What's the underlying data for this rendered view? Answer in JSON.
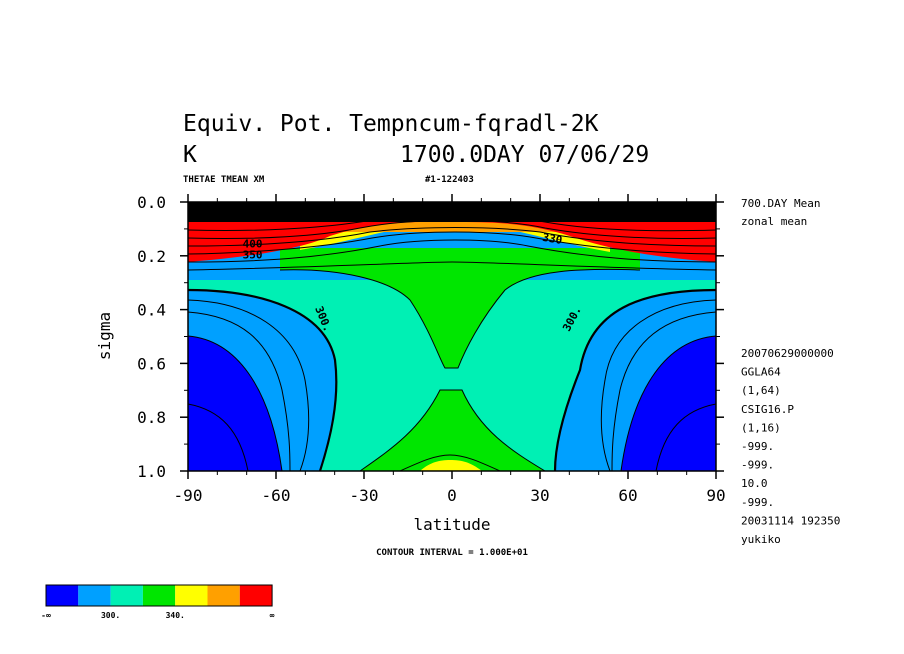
{
  "header": {
    "title_line1": "Equiv. Pot. Tempncum-fqradl-2K",
    "title_line2_left": "K",
    "title_line2_right": "1700.0DAY 07/06/29",
    "var_label": "THETAE TMEAN XM",
    "run_id": "#1-122403"
  },
  "side_info": {
    "top": [
      "700.DAY Mean",
      "zonal mean"
    ],
    "bottom": [
      "20070629000000",
      "GGLA64",
      "(1,64)",
      "CSIG16.P",
      "(1,16)",
      "-999.",
      "-999.",
      "10.0",
      "-999.",
      "20031114 192350",
      "yukiko"
    ]
  },
  "footer": {
    "contour_interval": "CONTOUR INTERVAL = 1.000E+01"
  },
  "colorbar": {
    "colors": [
      "#0000ff",
      "#00a0ff",
      "#00f0b4",
      "#00e600",
      "#ffff00",
      "#ffa000",
      "#ff0000"
    ],
    "labels": [
      "-∞",
      "300.",
      "340.",
      "∞"
    ]
  },
  "chart_data": {
    "type": "contour",
    "xlabel": "latitude",
    "ylabel": "sigma",
    "xlim": [
      -90,
      90
    ],
    "ylim": [
      1.0,
      0.0
    ],
    "x_ticks": [
      -90,
      -60,
      -30,
      0,
      30,
      60,
      90
    ],
    "x_tick_labels": [
      "-90",
      "-60",
      "-30",
      "0",
      "30",
      "60",
      "90"
    ],
    "y_ticks": [
      0.0,
      0.2,
      0.4,
      0.6,
      0.8,
      1.0
    ],
    "y_tick_labels": [
      "0.0",
      "0.2",
      "0.4",
      "0.6",
      "0.8",
      "1.0"
    ],
    "contour_interval": 10,
    "contour_labels": [
      {
        "text": "300.",
        "lat": -45,
        "sigma": 0.44,
        "rotate": 68
      },
      {
        "text": "300.",
        "lat": 42,
        "sigma": 0.44,
        "rotate": -62
      },
      {
        "text": "330",
        "lat": 34,
        "sigma": 0.15,
        "rotate": 10
      },
      {
        "text": "400",
        "lat": -68,
        "sigma": 0.17,
        "rotate": 0
      },
      {
        "text": "350",
        "lat": -68,
        "sigma": 0.21,
        "rotate": 0
      }
    ]
  }
}
